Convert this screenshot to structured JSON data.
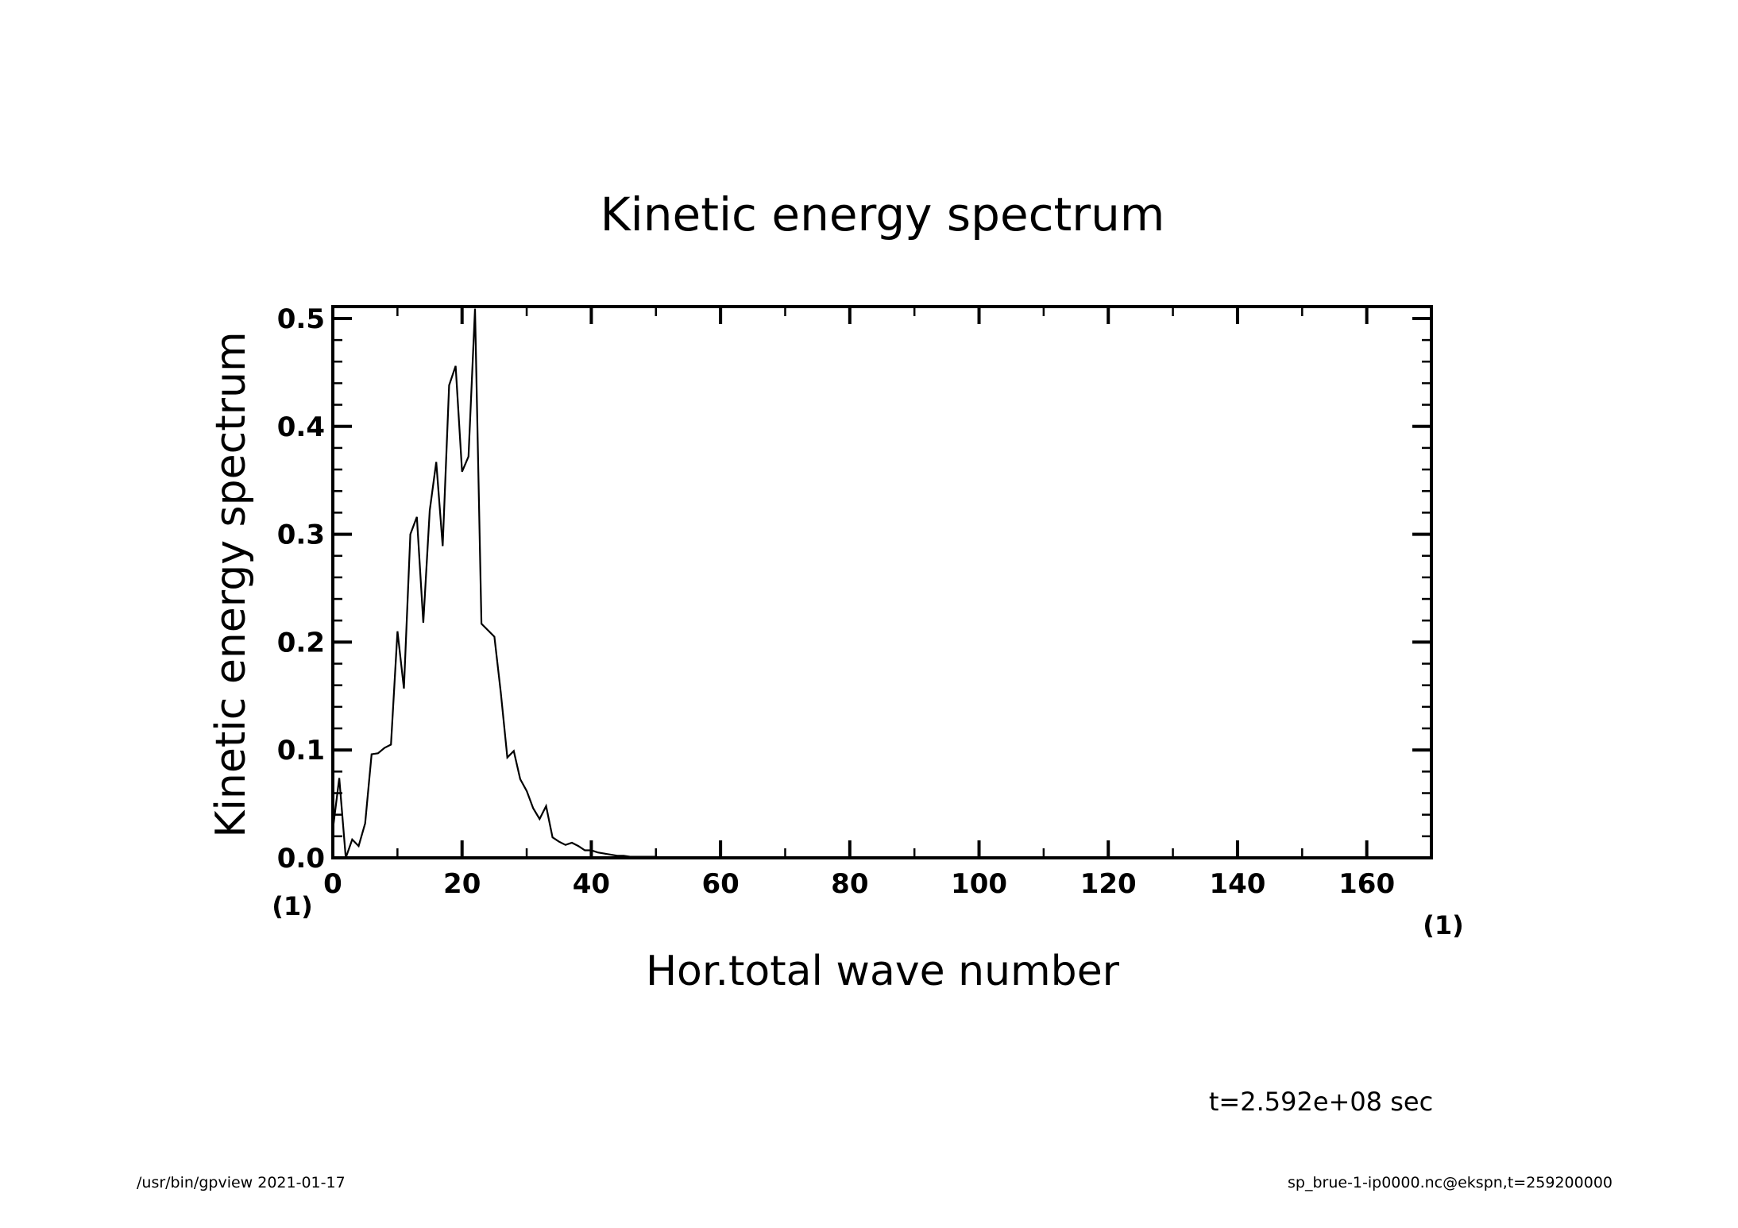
{
  "chart_data": {
    "type": "line",
    "title": "Kinetic energy spectrum",
    "xlabel": "Hor.total wave number",
    "ylabel": "Kinetic energy spectrum",
    "x_unit": "(1)",
    "y_unit": "(1)",
    "xlim": [
      0,
      170
    ],
    "ylim": [
      0,
      0.511
    ],
    "x_major_ticks": [
      0,
      20,
      40,
      60,
      80,
      100,
      120,
      140,
      160
    ],
    "x_minor_step": 10,
    "y_major_ticks": [
      0.0,
      0.1,
      0.2,
      0.3,
      0.4,
      0.5
    ],
    "y_tick_labels": [
      "0.0",
      "0.1",
      "0.2",
      "0.3",
      "0.4",
      "0.5"
    ],
    "y_minor_step": 0.02,
    "grid": false,
    "series": [
      {
        "name": "Kinetic energy spectrum",
        "color": "#000000",
        "x_start": 0,
        "values": [
          0.026,
          0.074,
          0.0,
          0.017,
          0.011,
          0.032,
          0.096,
          0.097,
          0.102,
          0.105,
          0.21,
          0.157,
          0.3,
          0.316,
          0.218,
          0.322,
          0.367,
          0.289,
          0.438,
          0.456,
          0.358,
          0.372,
          0.509,
          0.217,
          0.211,
          0.205,
          0.153,
          0.093,
          0.099,
          0.073,
          0.062,
          0.046,
          0.036,
          0.048,
          0.019,
          0.015,
          0.012,
          0.014,
          0.011,
          0.007,
          0.007,
          0.005,
          0.004,
          0.003,
          0.002,
          0.002,
          0.001,
          0.001,
          0.001,
          0.001,
          0.001,
          0.0,
          0.0,
          0.0,
          0.0,
          0.0,
          0.0,
          0.0,
          0.0,
          0.0,
          0.0
        ]
      }
    ]
  },
  "annotations": {
    "time": "t=2.592e+08 sec",
    "footer_left": "/usr/bin/gpview   2021-01-17",
    "footer_right": "sp_brue-1-ip0000.nc@ekspn,t=259200000"
  }
}
